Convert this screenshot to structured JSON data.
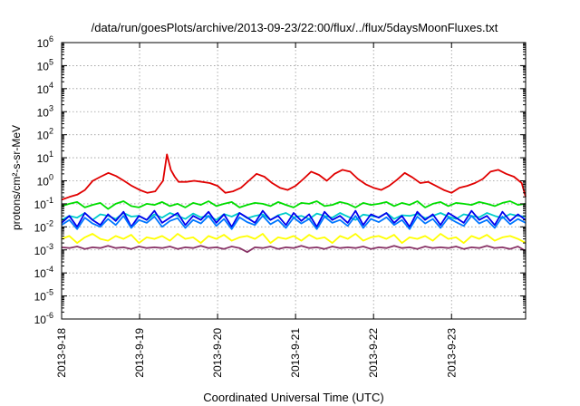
{
  "chart_data": {
    "type": "line",
    "title": "/data/run/goesPlots/archive/2013-09-23/22:00/flux/../flux/5daysMoonFluxes.txt",
    "xlabel": "Coordinated Universal Time (UTC)",
    "ylabel": "protons/cm²-s-sr-MeV",
    "yscale": "log",
    "ylim": [
      1e-06,
      1000000.0
    ],
    "xlim": [
      0,
      5.95
    ],
    "x_ticks": [
      {
        "pos": 0,
        "label": "2013-9-18"
      },
      {
        "pos": 1,
        "label": "2013-9-19"
      },
      {
        "pos": 2,
        "label": "2013-9-20"
      },
      {
        "pos": 3,
        "label": "2013-9-21"
      },
      {
        "pos": 4,
        "label": "2013-9-22"
      },
      {
        "pos": 5,
        "label": "2013-9-23"
      }
    ],
    "y_ticks": [
      {
        "exp": -6,
        "base": "10",
        "sup": "-6"
      },
      {
        "exp": -5,
        "base": "10",
        "sup": "-5"
      },
      {
        "exp": -4,
        "base": "10",
        "sup": "-4"
      },
      {
        "exp": -3,
        "base": "10",
        "sup": "-3"
      },
      {
        "exp": -2,
        "base": "10",
        "sup": "-2"
      },
      {
        "exp": -1,
        "base": "10",
        "sup": "-1"
      },
      {
        "exp": 0,
        "base": "10",
        "sup": "0"
      },
      {
        "exp": 1,
        "base": "10",
        "sup": "1"
      },
      {
        "exp": 2,
        "base": "10",
        "sup": "2"
      },
      {
        "exp": 3,
        "base": "10",
        "sup": "3"
      },
      {
        "exp": 4,
        "base": "10",
        "sup": "4"
      },
      {
        "exp": 5,
        "base": "10",
        "sup": "5"
      },
      {
        "exp": 6,
        "base": "10",
        "sup": "6"
      }
    ],
    "grid": true,
    "legend": "none",
    "series": [
      {
        "color": "#e00000",
        "x": [
          0,
          0.1,
          0.2,
          0.3,
          0.4,
          0.5,
          0.6,
          0.7,
          0.8,
          0.9,
          1.0,
          1.1,
          1.2,
          1.3,
          1.35,
          1.4,
          1.45,
          1.5,
          1.6,
          1.7,
          1.8,
          1.9,
          2.0,
          2.1,
          2.2,
          2.3,
          2.4,
          2.5,
          2.6,
          2.7,
          2.8,
          2.9,
          3.0,
          3.1,
          3.2,
          3.3,
          3.4,
          3.5,
          3.6,
          3.7,
          3.8,
          3.9,
          4.0,
          4.1,
          4.2,
          4.3,
          4.4,
          4.5,
          4.6,
          4.7,
          4.8,
          4.9,
          5.0,
          5.1,
          5.2,
          5.3,
          5.4,
          5.5,
          5.6,
          5.7,
          5.8,
          5.9,
          5.95
        ],
        "y": [
          0.15,
          0.2,
          0.25,
          0.4,
          1.0,
          1.5,
          2.2,
          1.6,
          1.0,
          0.6,
          0.4,
          0.3,
          0.35,
          1.0,
          14,
          3.0,
          1.5,
          0.9,
          0.9,
          1.0,
          0.9,
          0.8,
          0.6,
          0.3,
          0.35,
          0.5,
          1.0,
          2.0,
          1.5,
          0.8,
          0.5,
          0.4,
          0.6,
          1.2,
          2.5,
          1.8,
          1.0,
          2.0,
          3.0,
          2.5,
          1.2,
          0.7,
          0.5,
          0.4,
          0.6,
          1.1,
          2.2,
          1.4,
          0.8,
          0.9,
          0.6,
          0.4,
          0.3,
          0.5,
          0.6,
          0.8,
          1.2,
          2.5,
          3.0,
          2.0,
          1.5,
          0.8,
          0.2
        ]
      },
      {
        "color": "#00dd00",
        "y": [
          0.08,
          0.1,
          0.12,
          0.07,
          0.09,
          0.11,
          0.06,
          0.1,
          0.13,
          0.08,
          0.07,
          0.1,
          0.09,
          0.12,
          0.08,
          0.1,
          0.07,
          0.11,
          0.09,
          0.13,
          0.08,
          0.1,
          0.12,
          0.07,
          0.09,
          0.11,
          0.1,
          0.08,
          0.12,
          0.09,
          0.07,
          0.11,
          0.1,
          0.13,
          0.08,
          0.09,
          0.12,
          0.1,
          0.07,
          0.11,
          0.09,
          0.1,
          0.12,
          0.08,
          0.11,
          0.09,
          0.13,
          0.07,
          0.1,
          0.12,
          0.08,
          0.11,
          0.1,
          0.09,
          0.12,
          0.1,
          0.08,
          0.11,
          0.13,
          0.09,
          0.1
        ]
      },
      {
        "color": "#00cccc",
        "y": [
          0.02,
          0.03,
          0.025,
          0.04,
          0.02,
          0.035,
          0.03,
          0.022,
          0.04,
          0.028,
          0.03,
          0.02,
          0.035,
          0.025,
          0.04,
          0.03,
          0.022,
          0.038,
          0.026,
          0.03,
          0.02,
          0.036,
          0.028,
          0.04,
          0.024,
          0.03,
          0.035,
          0.02,
          0.032,
          0.04,
          0.026,
          0.03,
          0.022,
          0.038,
          0.03,
          0.025,
          0.04,
          0.028,
          0.02,
          0.034,
          0.03,
          0.026,
          0.04,
          0.022,
          0.032,
          0.03,
          0.036,
          0.024,
          0.03,
          0.04,
          0.028,
          0.022,
          0.035,
          0.03,
          0.026,
          0.04,
          0.03,
          0.024,
          0.036,
          0.03,
          0.028
        ]
      },
      {
        "color": "#0000ee",
        "y": [
          0.015,
          0.03,
          0.01,
          0.04,
          0.02,
          0.012,
          0.035,
          0.018,
          0.045,
          0.01,
          0.03,
          0.02,
          0.05,
          0.015,
          0.025,
          0.04,
          0.012,
          0.03,
          0.02,
          0.045,
          0.015,
          0.035,
          0.01,
          0.04,
          0.025,
          0.015,
          0.05,
          0.02,
          0.03,
          0.012,
          0.04,
          0.018,
          0.035,
          0.01,
          0.045,
          0.02,
          0.03,
          0.015,
          0.05,
          0.012,
          0.035,
          0.025,
          0.04,
          0.015,
          0.03,
          0.01,
          0.045,
          0.02,
          0.035,
          0.012,
          0.04,
          0.025,
          0.015,
          0.05,
          0.02,
          0.03,
          0.012,
          0.045,
          0.018,
          0.035,
          0.02
        ]
      },
      {
        "color": "#0077ff",
        "y": [
          0.012,
          0.02,
          0.008,
          0.025,
          0.014,
          0.01,
          0.022,
          0.012,
          0.03,
          0.009,
          0.02,
          0.015,
          0.028,
          0.01,
          0.018,
          0.024,
          0.009,
          0.02,
          0.014,
          0.03,
          0.011,
          0.022,
          0.008,
          0.026,
          0.016,
          0.012,
          0.03,
          0.013,
          0.02,
          0.009,
          0.025,
          0.014,
          0.022,
          0.008,
          0.028,
          0.015,
          0.02,
          0.011,
          0.03,
          0.009,
          0.022,
          0.016,
          0.026,
          0.012,
          0.02,
          0.008,
          0.028,
          0.014,
          0.022,
          0.009,
          0.025,
          0.016,
          0.011,
          0.03,
          0.014,
          0.02,
          0.009,
          0.028,
          0.013,
          0.022,
          0.015
        ]
      },
      {
        "color": "#ffff00",
        "y": [
          0.003,
          0.004,
          0.002,
          0.0035,
          0.005,
          0.003,
          0.0025,
          0.004,
          0.003,
          0.0045,
          0.002,
          0.0035,
          0.003,
          0.004,
          0.0025,
          0.005,
          0.003,
          0.0035,
          0.002,
          0.004,
          0.003,
          0.0045,
          0.0025,
          0.0035,
          0.004,
          0.003,
          0.005,
          0.002,
          0.0035,
          0.003,
          0.004,
          0.0025,
          0.0045,
          0.003,
          0.0035,
          0.002,
          0.004,
          0.003,
          0.005,
          0.0025,
          0.0035,
          0.004,
          0.003,
          0.0045,
          0.002,
          0.0035,
          0.003,
          0.004,
          0.0025,
          0.005,
          0.003,
          0.0035,
          0.002,
          0.004,
          0.003,
          0.0045,
          0.0025,
          0.0035,
          0.004,
          0.003,
          0.002
        ]
      },
      {
        "color": "#883366",
        "y": [
          0.0013,
          0.0012,
          0.0014,
          0.0011,
          0.0013,
          0.0012,
          0.0015,
          0.0012,
          0.0013,
          0.0011,
          0.0014,
          0.0012,
          0.0013,
          0.0012,
          0.0014,
          0.0011,
          0.0013,
          0.0012,
          0.0015,
          0.0012,
          0.0013,
          0.0011,
          0.0014,
          0.0012,
          0.0008,
          0.0013,
          0.0012,
          0.0014,
          0.0011,
          0.0013,
          0.0012,
          0.0015,
          0.0012,
          0.0013,
          0.0011,
          0.0014,
          0.0012,
          0.0013,
          0.0012,
          0.0014,
          0.0011,
          0.0013,
          0.0012,
          0.0015,
          0.0012,
          0.0013,
          0.0011,
          0.0014,
          0.0012,
          0.0013,
          0.0012,
          0.0014,
          0.0011,
          0.0013,
          0.0012,
          0.0015,
          0.0012,
          0.0013,
          0.0011,
          0.0014,
          0.0009
        ]
      }
    ]
  }
}
